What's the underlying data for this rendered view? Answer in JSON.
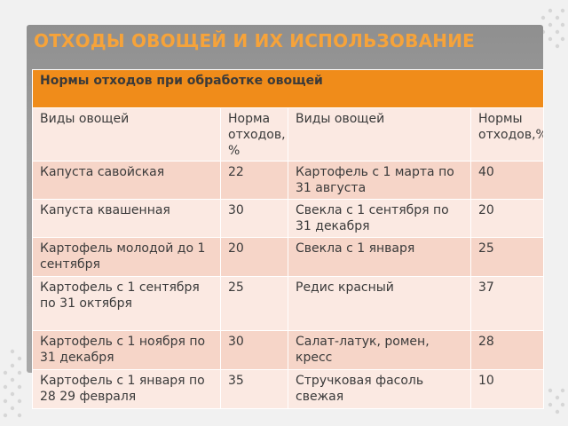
{
  "slide": {
    "title": "ОТХОДЫ ОВОЩЕЙ И ИХ ИСПОЛЬЗОВАНИЕ"
  },
  "table": {
    "caption": "Нормы отходов при обработке овощей",
    "columns": [
      "Виды овощей",
      "Норма отходов, %",
      "Виды овощей",
      "Нормы отходов,%"
    ],
    "rows": [
      [
        "Капуста савойская",
        "22",
        "Картофель с 1 марта по 31 августа",
        "40"
      ],
      [
        "Капуста квашенная",
        "30",
        "Свекла с 1 сентября по 31 декабря",
        "20"
      ],
      [
        "Картофель молодой до 1 сентября",
        "20",
        "Свекла с 1 января",
        "25"
      ],
      [
        "Картофель с 1 сентября по 31 октября",
        "25",
        "Редис красный",
        "37"
      ],
      [
        "Картофель с 1 ноября по 31 декабря",
        "30",
        "Салат-латук, ромен, кресс",
        "28"
      ],
      [
        "Картофель с 1 января по 28 29 февраля",
        "35",
        "Стручковая фасоль свежая",
        "10"
      ]
    ]
  },
  "colors": {
    "title": "#f6a33a",
    "header": "#f08c1a",
    "row_light": "#fbe9e2",
    "row_dark": "#f6d5c8",
    "slide_band": "#9c9c9c"
  }
}
